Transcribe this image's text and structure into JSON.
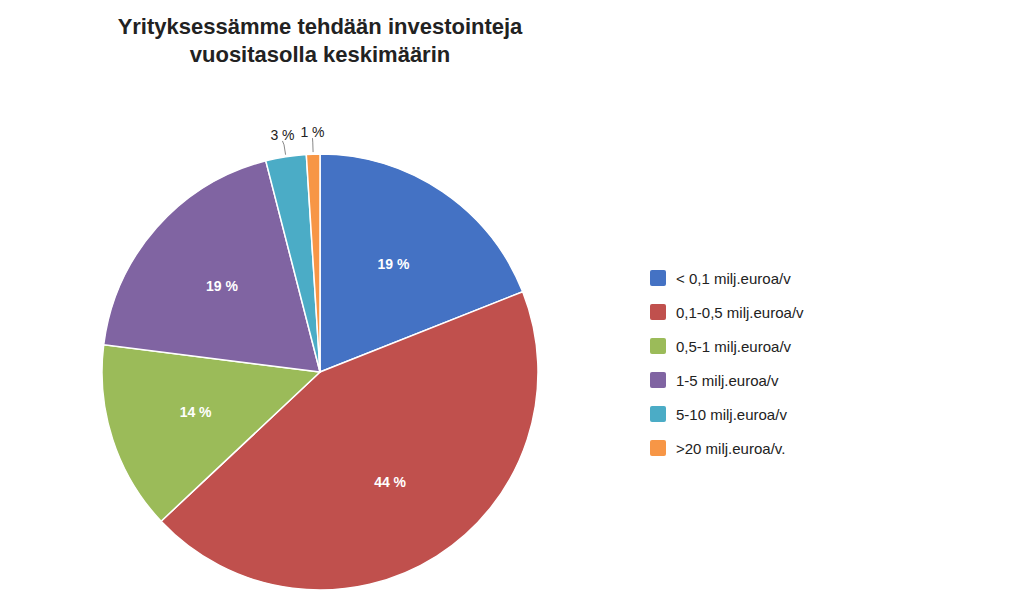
{
  "chart_data": {
    "type": "pie",
    "title": "Yrityksessämme tehdään investointeja\nvuositasolla keskimäärin",
    "categories": [
      "< 0,1 milj.euroa/v",
      "0,1-0,5 milj.euroa/v",
      "0,5-1 milj.euroa/v",
      "1-5 milj.euroa/v",
      "5-10 milj.euroa/v",
      ">20 milj.euroa/v."
    ],
    "values": [
      19,
      44,
      14,
      19,
      3,
      1
    ],
    "value_labels": [
      "19 %",
      "44 %",
      "14 %",
      "19 %",
      "3 %",
      "1 %"
    ],
    "colors": [
      "#4472c4",
      "#c0504d",
      "#9bbb59",
      "#8064a2",
      "#4bacc6",
      "#f79646"
    ],
    "data_labels": true,
    "legend": "right"
  }
}
